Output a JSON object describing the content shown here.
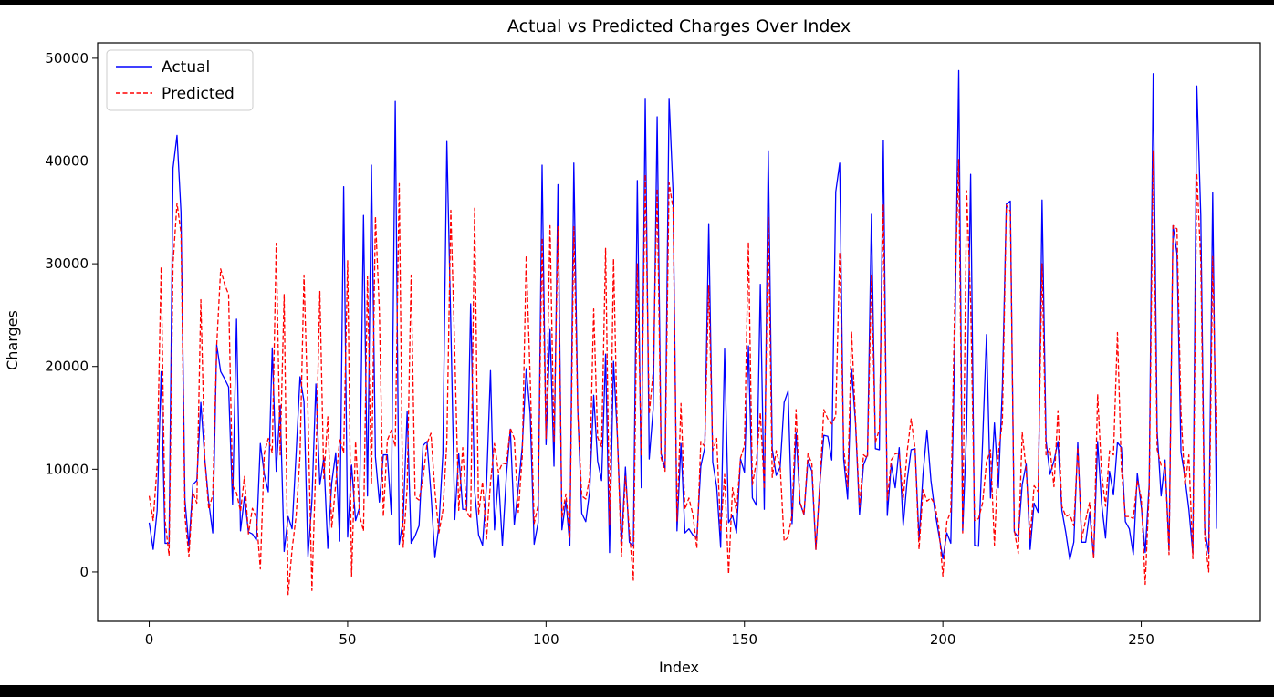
{
  "chart_data": {
    "type": "line",
    "title": "Actual vs Predicted Charges Over Index",
    "xlabel": "Index",
    "ylabel": "Charges",
    "xlim": [
      -13,
      280
    ],
    "ylim": [
      -4800,
      51500
    ],
    "xticks": [
      0,
      50,
      100,
      150,
      200,
      250
    ],
    "yticks": [
      0,
      10000,
      20000,
      30000,
      40000,
      50000
    ],
    "grid": false,
    "legend_position": "top-left",
    "series": [
      {
        "name": "Actual",
        "color": "#0000ff",
        "style": "solid",
        "values": [
          4800,
          2200,
          6000,
          19500,
          2800,
          2800,
          39300,
          42500,
          35000,
          7000,
          2500,
          8500,
          8900,
          16500,
          11000,
          6800,
          3800,
          22100,
          19500,
          18800,
          18000,
          6600,
          24600,
          4000,
          7300,
          3900,
          3700,
          3100,
          12500,
          9500,
          7800,
          21800,
          9800,
          16200,
          2000,
          5400,
          4200,
          11400,
          19000,
          16600,
          1500,
          6900,
          18300,
          8500,
          11100,
          2300,
          8700,
          11600,
          3000,
          37500,
          3400,
          10400,
          5000,
          6300,
          34700,
          7400,
          39600,
          11200,
          6800,
          11400,
          11400,
          5600,
          45800,
          2700,
          5100,
          15600,
          2800,
          3500,
          4500,
          12300,
          12700,
          7700,
          1400,
          4500,
          11500,
          41900,
          24000,
          5100,
          11500,
          6100,
          6100,
          26100,
          8000,
          3600,
          2600,
          8500,
          19600,
          4100,
          9400,
          2600,
          9400,
          13900,
          4600,
          8200,
          12200,
          19800,
          15400,
          2700,
          4800,
          39600,
          12400,
          23600,
          10300,
          37700,
          4100,
          6900,
          2600,
          39800,
          15700,
          5700,
          4900,
          7900,
          17200,
          10800,
          8900,
          21200,
          1900,
          20500,
          13000,
          2600,
          10200,
          2900,
          2500,
          38100,
          8200,
          46100,
          11000,
          15900,
          44300,
          11500,
          10100,
          46100,
          37000,
          4000,
          12500,
          3800,
          4200,
          3600,
          3300,
          10300,
          12100,
          33900,
          10700,
          8300,
          2400,
          21700,
          4800,
          5500,
          3800,
          11000,
          9700,
          22000,
          7200,
          6500,
          28000,
          6100,
          41000,
          12000,
          9400,
          10200,
          16500,
          17600,
          4700,
          13600,
          6700,
          5600,
          10900,
          9800,
          2200,
          8600,
          13300,
          13200,
          10900,
          37000,
          39800,
          11000,
          7100,
          19800,
          14400,
          5600,
          10400,
          11400,
          34800,
          12000,
          11900,
          42000,
          5500,
          10500,
          8200,
          12100,
          4500,
          8900,
          11900,
          12000,
          3200,
          9500,
          13800,
          8900,
          5900,
          3600,
          1300,
          3800,
          2800,
          22000,
          48800,
          4000,
          14000,
          38700,
          2600,
          2500,
          12500,
          23100,
          7200,
          14500,
          8200,
          18000,
          35800,
          36100,
          3900,
          3400,
          8500,
          10500,
          2200,
          6700,
          5800,
          36200,
          12800,
          9500,
          10800,
          12700,
          6000,
          3800,
          1200,
          2900,
          12600,
          2900,
          2900,
          5800,
          1400,
          12700,
          6700,
          3300,
          9800,
          7500,
          12600,
          12100,
          4900,
          4200,
          1700,
          9600,
          6400,
          1900,
          8600,
          48500,
          13700,
          7400,
          10900,
          2100,
          33700,
          31000,
          11700,
          9200,
          6100,
          1800,
          47300,
          34700,
          4200,
          1800,
          36900,
          4200
        ]
      },
      {
        "name": "Predicted",
        "color": "#ff0000",
        "style": "dashed",
        "values": [
          7400,
          5000,
          10400,
          29700,
          5000,
          1600,
          30000,
          35900,
          33000,
          5400,
          1500,
          7800,
          6700,
          26500,
          11000,
          6100,
          7500,
          22000,
          29500,
          28000,
          27000,
          8400,
          7700,
          5900,
          9300,
          3700,
          6200,
          5300,
          300,
          11600,
          13000,
          11600,
          32000,
          11400,
          27000,
          -2200,
          2200,
          5400,
          11300,
          28900,
          15500,
          -1800,
          10800,
          27300,
          9100,
          15100,
          4300,
          8600,
          13000,
          11600,
          30300,
          -400,
          12700,
          5500,
          4000,
          28800,
          8500,
          34600,
          25400,
          5400,
          12800,
          13800,
          12200,
          37800,
          2400,
          8200,
          28900,
          7300,
          7000,
          9100,
          12500,
          13500,
          7900,
          3800,
          6000,
          12600,
          35200,
          21400,
          6000,
          12100,
          5900,
          5200,
          35400,
          5600,
          8800,
          3200,
          8700,
          12500,
          9700,
          10600,
          10500,
          14000,
          13000,
          5800,
          11200,
          30800,
          18900,
          4700,
          6500,
          32500,
          13000,
          33700,
          12600,
          33600,
          5300,
          7600,
          3300,
          33600,
          15400,
          7400,
          7100,
          9200,
          25600,
          13100,
          12200,
          31500,
          4600,
          30500,
          12800,
          1500,
          9300,
          4000,
          -800,
          30000,
          11300,
          38700,
          15400,
          19500,
          37300,
          11100,
          9800,
          37900,
          35400,
          4900,
          16400,
          6100,
          7200,
          5600,
          2300,
          12700,
          12200,
          27900,
          11800,
          13000,
          3900,
          9500,
          -200,
          8200,
          5800,
          11100,
          12300,
          32100,
          8500,
          10700,
          15500,
          8100,
          34500,
          9200,
          11800,
          10300,
          3000,
          3400,
          5600,
          15800,
          6800,
          5600,
          11500,
          10500,
          2200,
          8500,
          15800,
          14900,
          14400,
          15200,
          31100,
          12100,
          8300,
          23400,
          14700,
          6300,
          11400,
          11100,
          28900,
          12600,
          13900,
          35800,
          7000,
          10900,
          11500,
          11600,
          7000,
          11700,
          14900,
          12000,
          2200,
          8000,
          6900,
          7200,
          6600,
          4300,
          -400,
          4900,
          5900,
          26400,
          40200,
          3800,
          37100,
          26300,
          5000,
          5200,
          6700,
          10700,
          11900,
          2600,
          11600,
          14600,
          35700,
          35100,
          4100,
          1800,
          13600,
          9900,
          3300,
          8400,
          7800,
          30000,
          11400,
          12000,
          8300,
          15700,
          6400,
          5400,
          5600,
          4500,
          12100,
          3200,
          5100,
          6800,
          1300,
          17300,
          9600,
          6400,
          11800,
          11400,
          23300,
          10000,
          5400,
          5400,
          5200,
          8900,
          7200,
          -1200,
          8000,
          41000,
          11900,
          10400,
          10500,
          1700,
          33700,
          33400,
          15600,
          8400,
          11400,
          1300,
          38800,
          30200,
          3400,
          0,
          30700,
          11300
        ]
      }
    ]
  }
}
